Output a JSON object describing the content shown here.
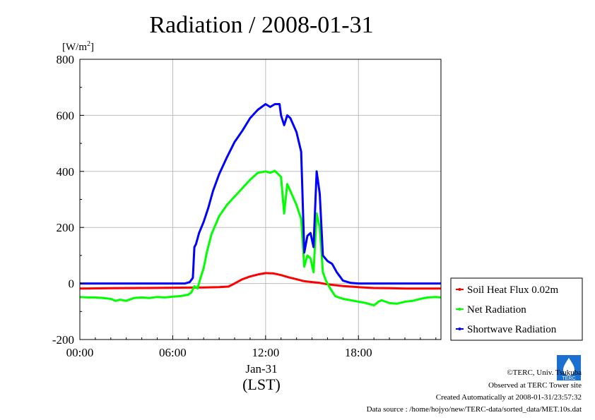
{
  "chart_data": {
    "type": "line",
    "title": "Radiation / 2008-01-31",
    "ylabel": "[W/m2]",
    "ylabel_main": "[W/m",
    "ylabel_sup": "2",
    "ylabel_close": "]",
    "xlabel": "(LST)",
    "x_date_label": "Jan-31",
    "ylim": [
      -200,
      800
    ],
    "xlim": [
      0,
      23.33
    ],
    "y_ticks": [
      -200,
      0,
      200,
      400,
      600,
      800
    ],
    "y_tick_labels": [
      "-200",
      "0",
      "200",
      "400",
      "600",
      "800"
    ],
    "x_ticks": [
      0,
      6,
      12,
      18
    ],
    "x_tick_labels": [
      "00:00",
      "06:00",
      "12:00",
      "18:00"
    ],
    "grid": true,
    "legend_position": "right",
    "series": [
      {
        "name": "Soil Heat Flux 0.02m",
        "color": "#ff0000",
        "points": [
          [
            0,
            -18
          ],
          [
            2,
            -17
          ],
          [
            4,
            -16
          ],
          [
            6,
            -15
          ],
          [
            8,
            -14
          ],
          [
            9,
            -13
          ],
          [
            9.6,
            -11
          ],
          [
            10,
            0
          ],
          [
            10.5,
            15
          ],
          [
            11,
            25
          ],
          [
            11.5,
            32
          ],
          [
            12,
            37
          ],
          [
            12.5,
            36
          ],
          [
            13,
            30
          ],
          [
            13.5,
            22
          ],
          [
            14,
            15
          ],
          [
            14.5,
            8
          ],
          [
            15,
            5
          ],
          [
            15.5,
            2
          ],
          [
            16,
            -3
          ],
          [
            16.5,
            -6
          ],
          [
            17,
            -9
          ],
          [
            18,
            -13
          ],
          [
            19,
            -16
          ],
          [
            20,
            -17
          ],
          [
            21,
            -18
          ],
          [
            22,
            -18
          ],
          [
            23.33,
            -18
          ]
        ]
      },
      {
        "name": "Net Radiation",
        "color": "#00ff00",
        "points": [
          [
            0,
            -48
          ],
          [
            0.5,
            -50
          ],
          [
            1,
            -50
          ],
          [
            1.5,
            -52
          ],
          [
            2,
            -55
          ],
          [
            2.3,
            -62
          ],
          [
            2.6,
            -58
          ],
          [
            3,
            -62
          ],
          [
            3.5,
            -52
          ],
          [
            4,
            -50
          ],
          [
            4.5,
            -52
          ],
          [
            5,
            -48
          ],
          [
            5.5,
            -50
          ],
          [
            6,
            -47
          ],
          [
            6.5,
            -45
          ],
          [
            7,
            -40
          ],
          [
            7.2,
            -32
          ],
          [
            7.4,
            -10
          ],
          [
            7.6,
            -18
          ],
          [
            7.8,
            20
          ],
          [
            8,
            55
          ],
          [
            8.2,
            110
          ],
          [
            8.5,
            175
          ],
          [
            9,
            240
          ],
          [
            9.5,
            280
          ],
          [
            10,
            310
          ],
          [
            10.5,
            340
          ],
          [
            11,
            370
          ],
          [
            11.5,
            395
          ],
          [
            12,
            400
          ],
          [
            12.3,
            395
          ],
          [
            12.6,
            402
          ],
          [
            13,
            380
          ],
          [
            13.2,
            250
          ],
          [
            13.4,
            355
          ],
          [
            13.6,
            330
          ],
          [
            14,
            280
          ],
          [
            14.3,
            230
          ],
          [
            14.5,
            60
          ],
          [
            14.7,
            100
          ],
          [
            14.9,
            90
          ],
          [
            15.1,
            40
          ],
          [
            15.3,
            250
          ],
          [
            15.5,
            200
          ],
          [
            15.7,
            40
          ],
          [
            15.9,
            10
          ],
          [
            16.2,
            -20
          ],
          [
            16.5,
            -45
          ],
          [
            17,
            -55
          ],
          [
            17.5,
            -60
          ],
          [
            18,
            -65
          ],
          [
            18.5,
            -70
          ],
          [
            19,
            -78
          ],
          [
            19.3,
            -65
          ],
          [
            19.5,
            -60
          ],
          [
            20,
            -70
          ],
          [
            20.5,
            -72
          ],
          [
            21,
            -65
          ],
          [
            21.5,
            -62
          ],
          [
            22,
            -55
          ],
          [
            22.5,
            -50
          ],
          [
            23,
            -48
          ],
          [
            23.33,
            -50
          ]
        ]
      },
      {
        "name": "Shortwave Radiation",
        "color": "#0000ff",
        "points": [
          [
            0,
            0
          ],
          [
            6.8,
            0
          ],
          [
            7.1,
            5
          ],
          [
            7.3,
            20
          ],
          [
            7.4,
            130
          ],
          [
            7.5,
            140
          ],
          [
            7.7,
            180
          ],
          [
            8,
            220
          ],
          [
            8.3,
            270
          ],
          [
            8.6,
            330
          ],
          [
            9,
            390
          ],
          [
            9.5,
            450
          ],
          [
            10,
            505
          ],
          [
            10.5,
            545
          ],
          [
            11,
            590
          ],
          [
            11.5,
            620
          ],
          [
            12,
            640
          ],
          [
            12.3,
            630
          ],
          [
            12.6,
            640
          ],
          [
            12.9,
            640
          ],
          [
            13,
            600
          ],
          [
            13.2,
            565
          ],
          [
            13.4,
            600
          ],
          [
            13.6,
            590
          ],
          [
            14,
            540
          ],
          [
            14.3,
            470
          ],
          [
            14.5,
            110
          ],
          [
            14.7,
            170
          ],
          [
            14.9,
            180
          ],
          [
            15.1,
            130
          ],
          [
            15.3,
            400
          ],
          [
            15.5,
            320
          ],
          [
            15.7,
            100
          ],
          [
            16,
            80
          ],
          [
            16.3,
            70
          ],
          [
            16.6,
            40
          ],
          [
            17,
            10
          ],
          [
            17.5,
            2
          ],
          [
            18,
            0
          ],
          [
            23.33,
            0
          ]
        ]
      }
    ]
  },
  "footer": {
    "copyright": "©TERC, Univ. Tsukuba",
    "observed": "Observed at TERC Tower site",
    "created": "Created Automatically at 2008-01-31/23:57:32",
    "source": "Data source : /home/hojyo/new/TERC-data/sorted_data/MET.10s.dat",
    "logo_text": "TERC"
  }
}
